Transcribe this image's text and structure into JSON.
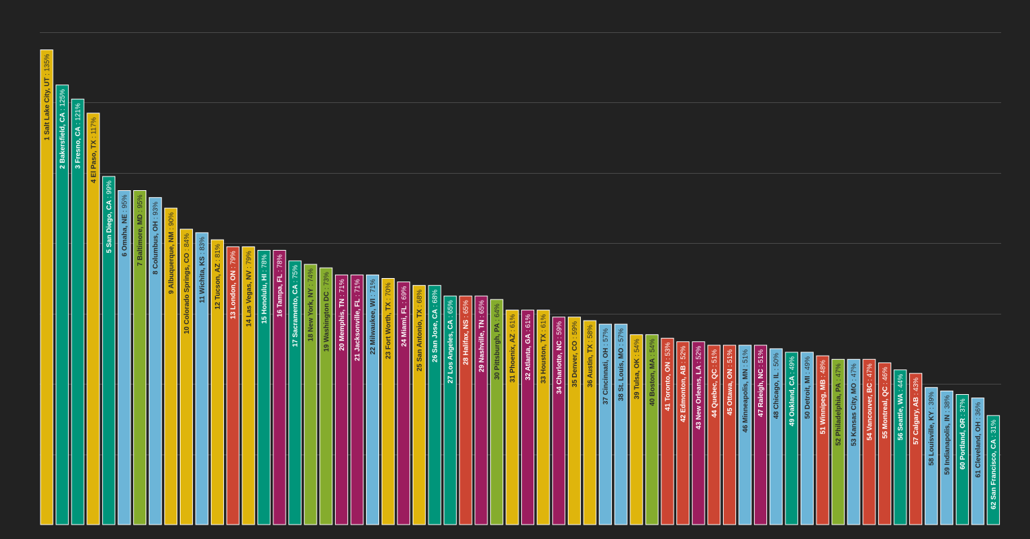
{
  "colors": {
    "background": "#222222",
    "gridline": "#4a4a4a",
    "bar_border": "#ffffff"
  },
  "chart_data": {
    "type": "bar",
    "title": "",
    "xlabel": "",
    "ylabel": "",
    "ylim": [
      0,
      140
    ],
    "grid": true,
    "gridlines": [
      20,
      40,
      60,
      80,
      100,
      120,
      140
    ],
    "legend": "none",
    "palette": {
      "yellow": "#dfb50c",
      "teal": "#00957a",
      "green": "#85ac2d",
      "blue": "#6cb5d8",
      "red": "#cc4532",
      "magenta": "#9c1d5e"
    },
    "bars": [
      {
        "city": "1 Salt Lake City, UT",
        "pct": "135%",
        "value": 135,
        "color": "yellow"
      },
      {
        "city": "2 Bakersfield, CA",
        "pct": "125%",
        "value": 125,
        "color": "teal"
      },
      {
        "city": "3 Fresno, CA",
        "pct": "121%",
        "value": 121,
        "color": "teal"
      },
      {
        "city": "4 El Paso, TX",
        "pct": "117%",
        "value": 117,
        "color": "yellow"
      },
      {
        "city": "5 San Diego, CA",
        "pct": "99%",
        "value": 99,
        "color": "teal"
      },
      {
        "city": "6 Omaha, NE",
        "pct": "95%",
        "value": 95,
        "color": "blue"
      },
      {
        "city": "7 Baltimore, MD",
        "pct": "95%",
        "value": 95,
        "color": "green"
      },
      {
        "city": "8 Columbus, OH",
        "pct": "93%",
        "value": 93,
        "color": "blue"
      },
      {
        "city": "9 Albuquerque, NM",
        "pct": "90%",
        "value": 90,
        "color": "yellow"
      },
      {
        "city": "10 Colorado Springs, CO",
        "pct": "84%",
        "value": 84,
        "color": "yellow"
      },
      {
        "city": "11 Wichita, KS",
        "pct": "83%",
        "value": 83,
        "color": "blue"
      },
      {
        "city": "12 Tucson, AZ",
        "pct": "81%",
        "value": 81,
        "color": "yellow"
      },
      {
        "city": "13 London, ON",
        "pct": "79%",
        "value": 79,
        "color": "red"
      },
      {
        "city": "14 Las Vegas, NV",
        "pct": "79%",
        "value": 79,
        "color": "yellow"
      },
      {
        "city": "15 Honolulu, HI",
        "pct": "78%",
        "value": 78,
        "color": "teal"
      },
      {
        "city": "16 Tampa, FL",
        "pct": "78%",
        "value": 78,
        "color": "magenta"
      },
      {
        "city": "17 Sacramento, CA",
        "pct": "75%",
        "value": 75,
        "color": "teal"
      },
      {
        "city": "18 New York, NY",
        "pct": "74%",
        "value": 74,
        "color": "green"
      },
      {
        "city": "19 Washington DC",
        "pct": "73%",
        "value": 73,
        "color": "green"
      },
      {
        "city": "20 Memphis, TN",
        "pct": "71%",
        "value": 71,
        "color": "magenta"
      },
      {
        "city": "21 Jacksonville, FL",
        "pct": "71%",
        "value": 71,
        "color": "magenta"
      },
      {
        "city": "22 Milwaukee, WI",
        "pct": "71%",
        "value": 71,
        "color": "blue"
      },
      {
        "city": "23 Fort Worth, TX",
        "pct": "70%",
        "value": 70,
        "color": "yellow"
      },
      {
        "city": "24 Miami, FL",
        "pct": "69%",
        "value": 69,
        "color": "magenta"
      },
      {
        "city": "25 San Antonio, TX",
        "pct": "68%",
        "value": 68,
        "color": "yellow"
      },
      {
        "city": "26 San Jose, CA",
        "pct": "68%",
        "value": 68,
        "color": "teal"
      },
      {
        "city": "27 Los Angeles, CA",
        "pct": "65%",
        "value": 65,
        "color": "teal"
      },
      {
        "city": "28 Halifax, NS",
        "pct": "65%",
        "value": 65,
        "color": "red"
      },
      {
        "city": "29 Nashville, TN",
        "pct": "65%",
        "value": 65,
        "color": "magenta"
      },
      {
        "city": "30 Pittsburgh, PA",
        "pct": "64%",
        "value": 64,
        "color": "green"
      },
      {
        "city": "31 Phoenix, AZ",
        "pct": "61%",
        "value": 61,
        "color": "yellow"
      },
      {
        "city": "32 Atlanta, GA",
        "pct": "61%",
        "value": 61,
        "color": "magenta"
      },
      {
        "city": "33 Houston, TX",
        "pct": "61%",
        "value": 61,
        "color": "yellow"
      },
      {
        "city": "34 Charlotte, NC",
        "pct": "59%",
        "value": 59,
        "color": "magenta"
      },
      {
        "city": "35 Denver, CO",
        "pct": "59%",
        "value": 59,
        "color": "yellow"
      },
      {
        "city": "36 Austin, TX",
        "pct": "58%",
        "value": 58,
        "color": "yellow"
      },
      {
        "city": "37 Cincinnati, OH",
        "pct": "57%",
        "value": 57,
        "color": "blue"
      },
      {
        "city": "38 St. Louis, MO",
        "pct": "57%",
        "value": 57,
        "color": "blue"
      },
      {
        "city": "39 Tulsa, OK",
        "pct": "54%",
        "value": 54,
        "color": "yellow"
      },
      {
        "city": "40 Boston, MA",
        "pct": "54%",
        "value": 54,
        "color": "green"
      },
      {
        "city": "41 Toronto, ON",
        "pct": "53%",
        "value": 53,
        "color": "red"
      },
      {
        "city": "42 Edmonton, AB",
        "pct": "52%",
        "value": 52,
        "color": "red"
      },
      {
        "city": "43 New Orleans, LA",
        "pct": "52%",
        "value": 52,
        "color": "magenta"
      },
      {
        "city": "44 Quebec, QC",
        "pct": "51%",
        "value": 51,
        "color": "red"
      },
      {
        "city": "45 Ottawa, ON",
        "pct": "51%",
        "value": 51,
        "color": "red"
      },
      {
        "city": "46 Minneapolis, MN",
        "pct": "51%",
        "value": 51,
        "color": "blue"
      },
      {
        "city": "47 Raleigh, NC",
        "pct": "51%",
        "value": 51,
        "color": "magenta"
      },
      {
        "city": "48 Chicago, IL",
        "pct": "50%",
        "value": 50,
        "color": "blue"
      },
      {
        "city": "49 Oakland, CA",
        "pct": "49%",
        "value": 49,
        "color": "teal"
      },
      {
        "city": "50 Detroit, MI",
        "pct": "49%",
        "value": 49,
        "color": "blue"
      },
      {
        "city": "51 Winnipeg, MB",
        "pct": "48%",
        "value": 48,
        "color": "red"
      },
      {
        "city": "52 Philadelphia, PA",
        "pct": "47%",
        "value": 47,
        "color": "green"
      },
      {
        "city": "53 Kansas City, MO",
        "pct": "47%",
        "value": 47,
        "color": "blue"
      },
      {
        "city": "54 Vancouver, BC",
        "pct": "47%",
        "value": 47,
        "color": "red"
      },
      {
        "city": "55 Montreal, QC",
        "pct": "46%",
        "value": 46,
        "color": "red"
      },
      {
        "city": "56 Seattle, WA",
        "pct": "44%",
        "value": 44,
        "color": "teal"
      },
      {
        "city": "57 Calgary, AB",
        "pct": "43%",
        "value": 43,
        "color": "red"
      },
      {
        "city": "58 Louisville, KY",
        "pct": "39%",
        "value": 39,
        "color": "blue"
      },
      {
        "city": "59 Indianapolis, IN",
        "pct": "38%",
        "value": 38,
        "color": "blue"
      },
      {
        "city": "60 Portland, OR",
        "pct": "37%",
        "value": 37,
        "color": "teal"
      },
      {
        "city": "61 Cleveland, OH",
        "pct": "36%",
        "value": 36,
        "color": "blue"
      },
      {
        "city": "62 San Francisco, CA",
        "pct": "31%",
        "value": 31,
        "color": "teal"
      }
    ]
  }
}
